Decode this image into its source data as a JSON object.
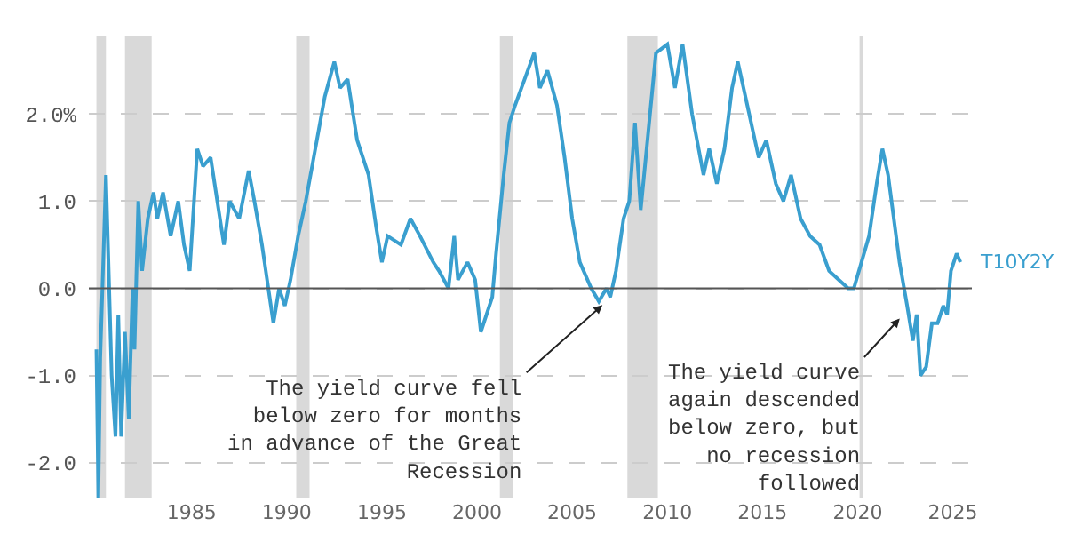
{
  "chart_data": {
    "type": "line",
    "x": [
      1980.0,
      1980.1,
      1980.2,
      1980.5,
      1980.8,
      1981.0,
      1981.15,
      1981.3,
      1981.5,
      1981.7,
      1981.9,
      1982.0,
      1982.2,
      1982.4,
      1982.7,
      1983.0,
      1983.2,
      1983.5,
      1983.9,
      1984.3,
      1984.6,
      1984.9,
      1985.3,
      1985.6,
      1986.0,
      1986.7,
      1987.0,
      1987.5,
      1988.0,
      1988.3,
      1988.7,
      1989.3,
      1989.6,
      1989.9,
      1990.2,
      1990.6,
      1991.0,
      1991.5,
      1992.0,
      1992.5,
      1992.8,
      1993.2,
      1993.7,
      1994.3,
      1994.7,
      1995.0,
      1995.3,
      1996.0,
      1996.5,
      1997.0,
      1997.7,
      1998.0,
      1998.5,
      1998.8,
      1999.0,
      1999.5,
      1999.9,
      2000.2,
      2000.5,
      2000.8,
      2001.0,
      2001.4,
      2001.7,
      2002.0,
      2002.5,
      2003.0,
      2003.3,
      2003.7,
      2004.2,
      2004.6,
      2005.0,
      2005.4,
      2006.0,
      2006.4,
      2006.8,
      2007.0,
      2007.3,
      2007.7,
      2008.0,
      2008.3,
      2008.6,
      2009.0,
      2009.4,
      2010.0,
      2010.4,
      2010.8,
      2011.3,
      2011.9,
      2012.2,
      2012.6,
      2013.0,
      2013.4,
      2013.7,
      2014.3,
      2014.8,
      2015.2,
      2015.7,
      2016.1,
      2016.5,
      2017.0,
      2017.5,
      2018.0,
      2018.5,
      2019.0,
      2019.5,
      2019.8,
      2020.2,
      2020.6,
      2021.0,
      2021.3,
      2021.6,
      2021.9,
      2022.2,
      2022.6,
      2022.9,
      2023.1,
      2023.3,
      2023.6,
      2023.9,
      2024.2,
      2024.5,
      2024.7,
      2024.9,
      2025.2,
      2025.4
    ],
    "series": [
      {
        "name": "T10Y2Y",
        "color": "#3a9fcf",
        "values": [
          -0.7,
          -2.4,
          -0.8,
          1.3,
          -1.0,
          -1.7,
          -0.3,
          -1.7,
          -0.5,
          -1.5,
          0.0,
          -0.7,
          1.0,
          0.2,
          0.8,
          1.1,
          0.8,
          1.1,
          0.6,
          1.0,
          0.5,
          0.2,
          1.6,
          1.4,
          1.5,
          0.5,
          1.0,
          0.8,
          1.35,
          1.0,
          0.5,
          -0.4,
          0.0,
          -0.2,
          0.1,
          0.6,
          1.0,
          1.6,
          2.2,
          2.6,
          2.3,
          2.4,
          1.7,
          1.3,
          0.7,
          0.3,
          0.6,
          0.5,
          0.8,
          0.6,
          0.3,
          0.2,
          0.0,
          0.6,
          0.1,
          0.3,
          0.1,
          -0.5,
          -0.3,
          -0.1,
          0.4,
          1.3,
          1.9,
          2.1,
          2.4,
          2.7,
          2.3,
          2.5,
          2.1,
          1.5,
          0.8,
          0.3,
          0.0,
          -0.15,
          0.0,
          -0.1,
          0.2,
          0.8,
          1.0,
          1.9,
          0.9,
          1.8,
          2.7,
          2.8,
          2.3,
          2.8,
          2.0,
          1.3,
          1.6,
          1.2,
          1.6,
          2.3,
          2.6,
          2.0,
          1.5,
          1.7,
          1.2,
          1.0,
          1.3,
          0.8,
          0.6,
          0.5,
          0.2,
          0.1,
          0.0,
          0.0,
          0.3,
          0.6,
          1.2,
          1.6,
          1.3,
          0.8,
          0.3,
          -0.2,
          -0.6,
          -0.3,
          -1.0,
          -0.9,
          -0.4,
          -0.4,
          -0.2,
          -0.3,
          0.2,
          0.4,
          0.3
        ]
      }
    ],
    "xlim": [
      1979.6,
      2026.0
    ],
    "xticks": [
      1985,
      1990,
      1995,
      2000,
      2005,
      2010,
      2015,
      2020,
      2025
    ],
    "ylim": [
      -2.4,
      2.9
    ],
    "yticks": [
      {
        "value": -2.0,
        "label": "-2.0"
      },
      {
        "value": -1.0,
        "label": "-1.0"
      },
      {
        "value": 0.0,
        "label": "0.0"
      },
      {
        "value": 1.0,
        "label": "1.0"
      },
      {
        "value": 2.0,
        "label": "2.0%"
      }
    ],
    "grid": "y",
    "legend": false,
    "ref_lines": [
      {
        "axis": "y",
        "value": 0,
        "color": "#555555",
        "line_style": "solid"
      }
    ],
    "bands": [
      {
        "axis": "x",
        "from": 1980.0,
        "to": 1980.5,
        "color": "#d9d9d9"
      },
      {
        "axis": "x",
        "from": 1981.5,
        "to": 1982.9,
        "color": "#d9d9d9"
      },
      {
        "axis": "x",
        "from": 1990.5,
        "to": 1991.2,
        "color": "#d9d9d9"
      },
      {
        "axis": "x",
        "from": 2001.2,
        "to": 2001.9,
        "color": "#d9d9d9"
      },
      {
        "axis": "x",
        "from": 2007.9,
        "to": 2009.5,
        "color": "#d9d9d9"
      },
      {
        "axis": "x",
        "from": 2020.1,
        "to": 2020.3,
        "color": "#d9d9d9"
      }
    ],
    "annotations": [
      {
        "text": "The yield curve fell\nbelow zero for months\nin advance of the Great\nRecession",
        "x": 2006.8,
        "y": -0.15
      },
      {
        "text": "The yield curve\nagain descended\nbelow zero, but\nno recession\nfollowed",
        "x": 2022.4,
        "y": -0.3
      }
    ]
  }
}
